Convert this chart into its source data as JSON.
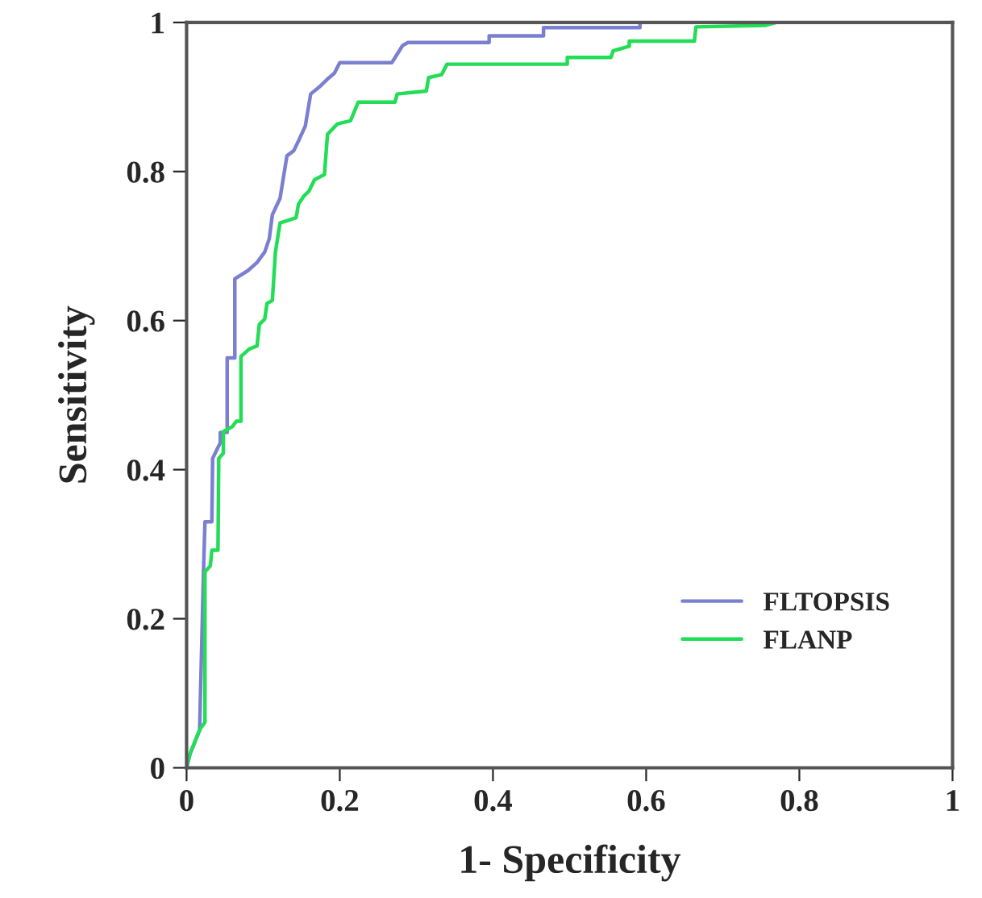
{
  "chart_data": {
    "type": "line",
    "xlabel": "1- Specificity",
    "ylabel": "Sensitivity",
    "xlim": [
      0,
      1
    ],
    "ylim": [
      0,
      1
    ],
    "xticks": [
      0,
      0.2,
      0.4,
      0.6,
      0.8,
      1
    ],
    "yticks": [
      0,
      0.2,
      0.4,
      0.6,
      0.8,
      1
    ],
    "grid": false,
    "legend": "lower right",
    "marker": "none",
    "line_style": "solid",
    "series": [
      {
        "name": "FLTOPSIS",
        "color": "#7b7fcf",
        "x": [
          0,
          0.005,
          0.017,
          0.022,
          0.024,
          0.033,
          0.034,
          0.044,
          0.044,
          0.053,
          0.053,
          0.063,
          0.063,
          0.08,
          0.092,
          0.102,
          0.108,
          0.112,
          0.122,
          0.131,
          0.14,
          0.147,
          0.155,
          0.162,
          0.175,
          0.185,
          0.193,
          0.2,
          0.268,
          0.282,
          0.289,
          0.395,
          0.395,
          0.466,
          0.466,
          0.592,
          0.592,
          1
        ],
        "values": [
          0,
          0.02,
          0.05,
          0.26,
          0.33,
          0.33,
          0.415,
          0.436,
          0.45,
          0.45,
          0.55,
          0.55,
          0.656,
          0.667,
          0.678,
          0.692,
          0.71,
          0.742,
          0.764,
          0.821,
          0.828,
          0.843,
          0.861,
          0.904,
          0.915,
          0.925,
          0.932,
          0.946,
          0.946,
          0.969,
          0.973,
          0.973,
          0.982,
          0.982,
          0.993,
          0.993,
          1,
          1
        ]
      },
      {
        "name": "FLANP",
        "color": "#22dd55",
        "x": [
          0,
          0.003,
          0.017,
          0.024,
          0.024,
          0.031,
          0.033,
          0.041,
          0.042,
          0.048,
          0.048,
          0.06,
          0.065,
          0.071,
          0.071,
          0.082,
          0.092,
          0.095,
          0.102,
          0.105,
          0.112,
          0.116,
          0.122,
          0.143,
          0.146,
          0.153,
          0.16,
          0.167,
          0.18,
          0.184,
          0.197,
          0.214,
          0.224,
          0.272,
          0.275,
          0.313,
          0.316,
          0.333,
          0.34,
          0.497,
          0.497,
          0.554,
          0.557,
          0.578,
          0.578,
          0.663,
          0.665,
          0.755,
          0.77,
          1
        ],
        "values": [
          0,
          0.015,
          0.051,
          0.061,
          0.263,
          0.271,
          0.292,
          0.292,
          0.415,
          0.422,
          0.451,
          0.458,
          0.465,
          0.465,
          0.552,
          0.562,
          0.566,
          0.595,
          0.602,
          0.623,
          0.627,
          0.692,
          0.731,
          0.738,
          0.756,
          0.767,
          0.774,
          0.789,
          0.796,
          0.85,
          0.864,
          0.868,
          0.893,
          0.893,
          0.904,
          0.908,
          0.926,
          0.93,
          0.944,
          0.944,
          0.953,
          0.953,
          0.962,
          0.968,
          0.975,
          0.975,
          0.994,
          0.996,
          1,
          1
        ]
      }
    ]
  }
}
